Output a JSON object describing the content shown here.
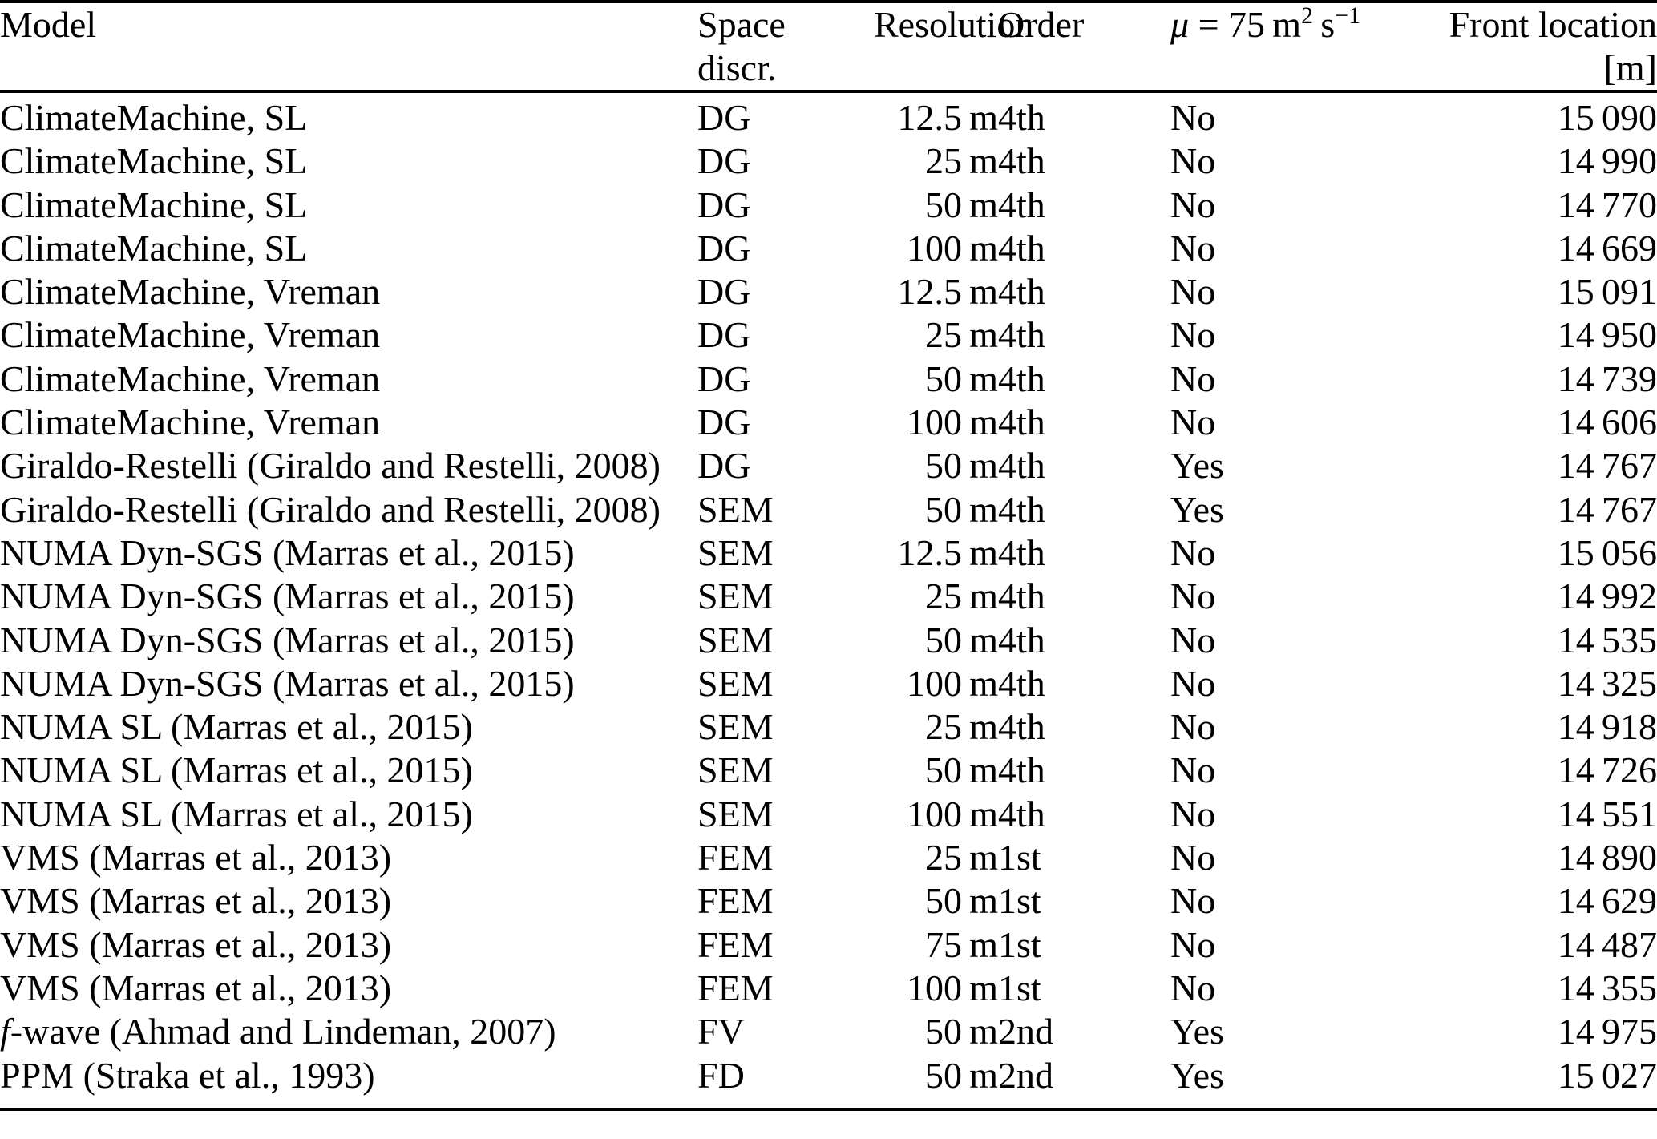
{
  "table": {
    "header": {
      "model": "Model",
      "space_line1": "Space",
      "space_line2": "discr.",
      "resolution": "Resolution",
      "order": "Order",
      "mu": [
        {
          "text": "μ",
          "italic": true
        },
        {
          "text": " = 75 m"
        },
        {
          "text": "2",
          "sup": true
        },
        {
          "text": " s"
        },
        {
          "text": "−1",
          "sup": true
        }
      ],
      "front_line1": "Front location",
      "front_line2": "[m]"
    },
    "rows": [
      {
        "model": "ClimateMachine, SL",
        "space": "DG",
        "resolution": "12.5 m",
        "order": "4th",
        "mu": "No",
        "front": "15 090"
      },
      {
        "model": "ClimateMachine, SL",
        "space": "DG",
        "resolution": "25 m",
        "order": "4th",
        "mu": "No",
        "front": "14 990"
      },
      {
        "model": "ClimateMachine, SL",
        "space": "DG",
        "resolution": "50 m",
        "order": "4th",
        "mu": "No",
        "front": "14 770"
      },
      {
        "model": "ClimateMachine, SL",
        "space": "DG",
        "resolution": "100 m",
        "order": "4th",
        "mu": "No",
        "front": "14 669"
      },
      {
        "model": "ClimateMachine, Vreman",
        "space": "DG",
        "resolution": "12.5 m",
        "order": "4th",
        "mu": "No",
        "front": "15 091"
      },
      {
        "model": "ClimateMachine, Vreman",
        "space": "DG",
        "resolution": "25 m",
        "order": "4th",
        "mu": "No",
        "front": "14 950"
      },
      {
        "model": "ClimateMachine, Vreman",
        "space": "DG",
        "resolution": "50 m",
        "order": "4th",
        "mu": "No",
        "front": "14 739"
      },
      {
        "model": "ClimateMachine, Vreman",
        "space": "DG",
        "resolution": "100 m",
        "order": "4th",
        "mu": "No",
        "front": "14 606"
      },
      {
        "model": "Giraldo-Restelli (Giraldo and Restelli, 2008)",
        "space": "DG",
        "resolution": "50 m",
        "order": "4th",
        "mu": "Yes",
        "front": "14 767"
      },
      {
        "model": "Giraldo-Restelli (Giraldo and Restelli, 2008)",
        "space": "SEM",
        "resolution": "50 m",
        "order": "4th",
        "mu": "Yes",
        "front": "14 767"
      },
      {
        "model": "NUMA Dyn-SGS (Marras et al., 2015)",
        "space": "SEM",
        "resolution": "12.5 m",
        "order": "4th",
        "mu": "No",
        "front": "15 056"
      },
      {
        "model": "NUMA Dyn-SGS (Marras et al., 2015)",
        "space": "SEM",
        "resolution": "25 m",
        "order": "4th",
        "mu": "No",
        "front": "14 992"
      },
      {
        "model": "NUMA Dyn-SGS (Marras et al., 2015)",
        "space": "SEM",
        "resolution": "50 m",
        "order": "4th",
        "mu": "No",
        "front": "14 535"
      },
      {
        "model": "NUMA Dyn-SGS (Marras et al., 2015)",
        "space": "SEM",
        "resolution": "100 m",
        "order": "4th",
        "mu": "No",
        "front": "14 325"
      },
      {
        "model": "NUMA SL (Marras et al., 2015)",
        "space": "SEM",
        "resolution": "25 m",
        "order": "4th",
        "mu": "No",
        "front": "14 918"
      },
      {
        "model": "NUMA SL (Marras et al., 2015)",
        "space": "SEM",
        "resolution": "50 m",
        "order": "4th",
        "mu": "No",
        "front": "14 726"
      },
      {
        "model": "NUMA SL (Marras et al., 2015)",
        "space": "SEM",
        "resolution": "100 m",
        "order": "4th",
        "mu": "No",
        "front": "14 551"
      },
      {
        "model": "VMS (Marras et al., 2013)",
        "space": "FEM",
        "resolution": "25 m",
        "order": "1st",
        "mu": "No",
        "front": "14 890"
      },
      {
        "model": "VMS (Marras et al., 2013)",
        "space": "FEM",
        "resolution": "50 m",
        "order": "1st",
        "mu": "No",
        "front": "14 629"
      },
      {
        "model": "VMS (Marras et al., 2013)",
        "space": "FEM",
        "resolution": "75 m",
        "order": "1st",
        "mu": "No",
        "front": "14 487"
      },
      {
        "model": "VMS (Marras et al., 2013)",
        "space": "FEM",
        "resolution": "100 m",
        "order": "1st",
        "mu": "No",
        "front": "14 355"
      },
      {
        "model": [
          {
            "text": "f",
            "italic": true
          },
          {
            "text": "-wave (Ahmad and Lindeman, 2007)"
          }
        ],
        "space": "FV",
        "resolution": "50 m",
        "order": "2nd",
        "mu": "Yes",
        "front": "14 975"
      },
      {
        "model": "PPM (Straka et al., 1993)",
        "space": "FD",
        "resolution": "50 m",
        "order": "2nd",
        "mu": "Yes",
        "front": "15 027"
      }
    ]
  }
}
